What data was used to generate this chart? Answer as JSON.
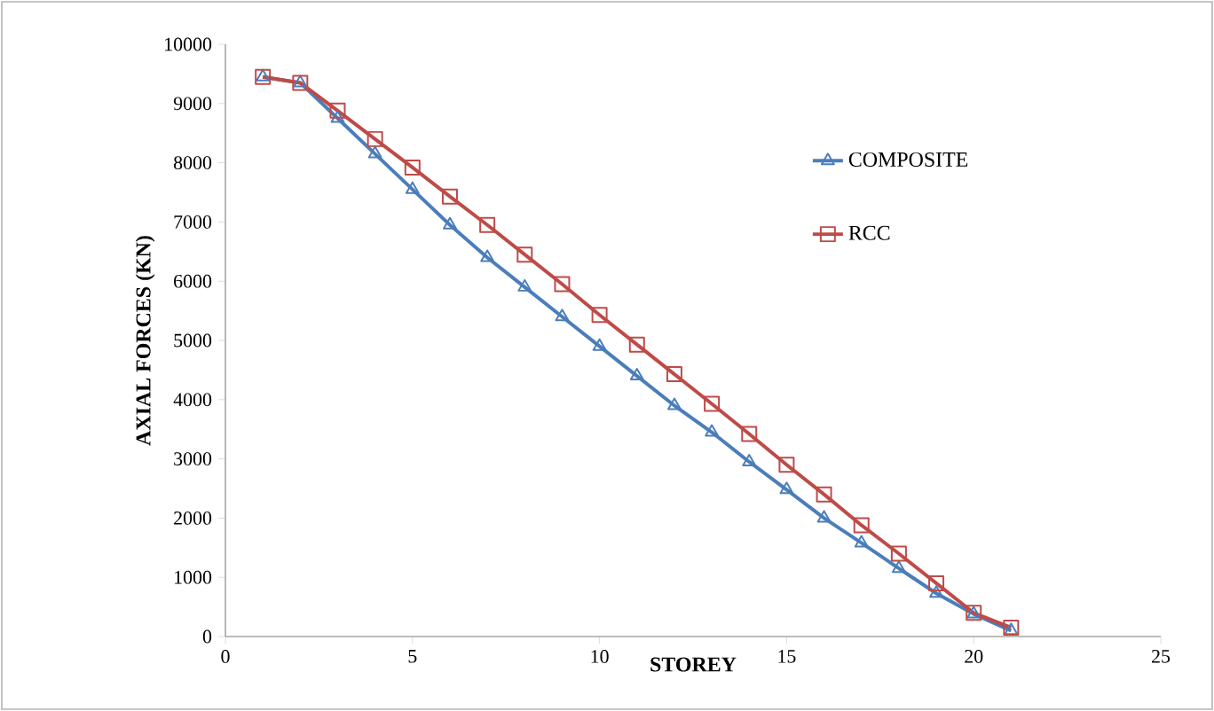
{
  "chart_data": {
    "type": "line",
    "xlabel": "STOREY",
    "ylabel": "AXIAL FORCES (KN)",
    "x": [
      1,
      2,
      3,
      4,
      5,
      6,
      7,
      8,
      9,
      10,
      11,
      12,
      13,
      14,
      15,
      16,
      17,
      18,
      19,
      20,
      21
    ],
    "series": [
      {
        "name": "COMPOSITE",
        "color": "#4a7ebb",
        "marker": "triangle",
        "values": [
          9450,
          9350,
          8750,
          8150,
          7550,
          6950,
          6400,
          5900,
          5400,
          4900,
          4400,
          3900,
          3450,
          2950,
          2480,
          2000,
          1580,
          1150,
          730,
          380,
          100
        ]
      },
      {
        "name": "RCC",
        "color": "#be4b48",
        "marker": "square",
        "values": [
          9450,
          9350,
          8880,
          8400,
          7920,
          7430,
          6950,
          6450,
          5950,
          5430,
          4930,
          4430,
          3930,
          3420,
          2900,
          2400,
          1880,
          1400,
          900,
          400,
          150
        ]
      }
    ],
    "xlim": [
      0,
      25
    ],
    "xticks": [
      0,
      5,
      10,
      15,
      20,
      25
    ],
    "ylim": [
      0,
      10000
    ],
    "yticks": [
      0,
      1000,
      2000,
      3000,
      4000,
      5000,
      6000,
      7000,
      8000,
      9000,
      10000
    ],
    "legend": "top right",
    "grid": false,
    "line_style": "solid"
  }
}
